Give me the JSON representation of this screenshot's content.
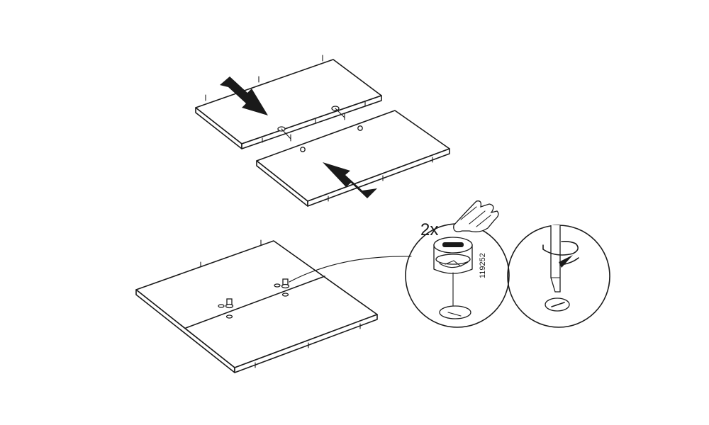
{
  "step": {
    "quantity_label": "2x",
    "part_number": "119252"
  }
}
